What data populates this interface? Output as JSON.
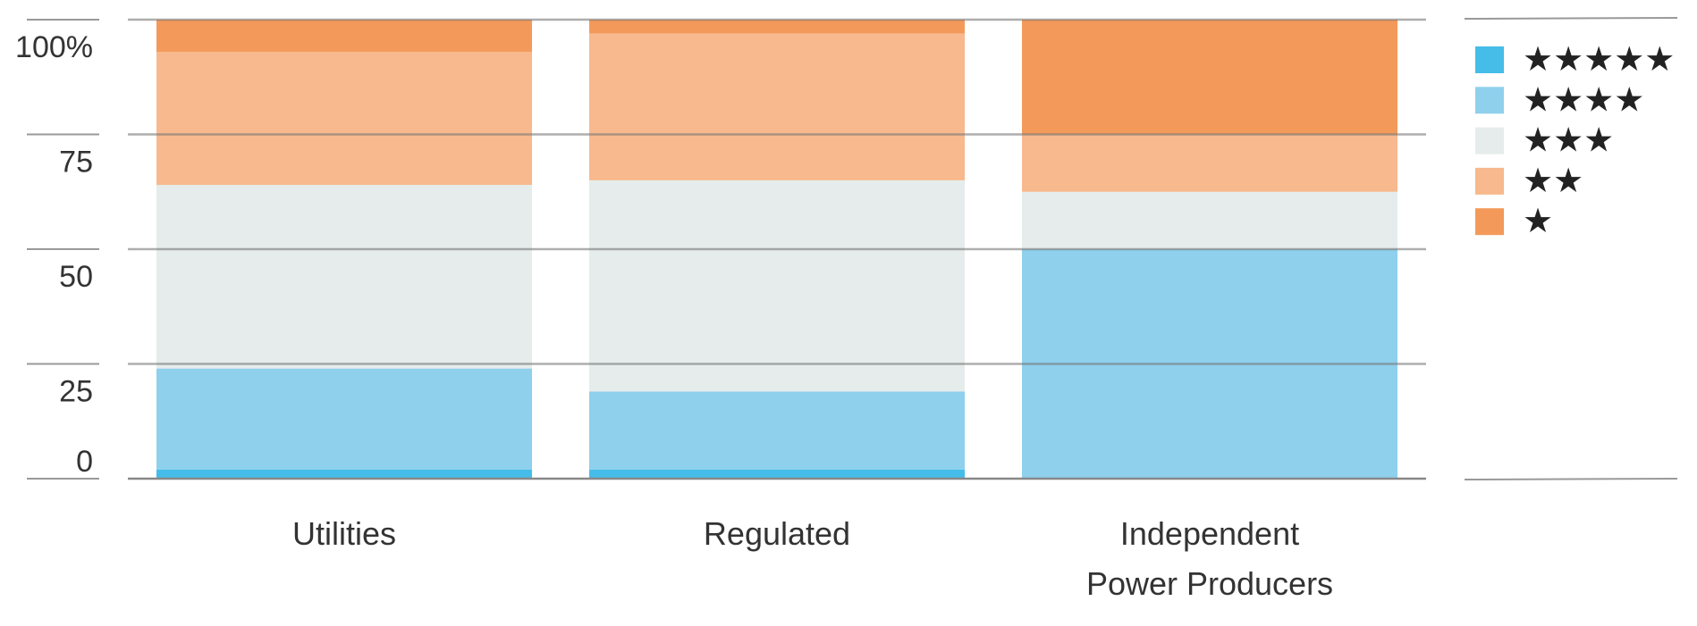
{
  "chart_data": {
    "type": "stacked_bar",
    "categories": [
      "Utilities",
      "Regulated",
      "Independent Power Producers"
    ],
    "series": [
      {
        "name": "★★★★★",
        "color": "#45bde8",
        "values": [
          2,
          2,
          0
        ]
      },
      {
        "name": "★★★★",
        "color": "#8fd0ec",
        "values": [
          22,
          17,
          50
        ]
      },
      {
        "name": "★★★",
        "color": "#e6ecec",
        "values": [
          40,
          46,
          12.5
        ]
      },
      {
        "name": "★★",
        "color": "#f7b98d",
        "values": [
          29,
          32,
          12.5
        ]
      },
      {
        "name": "★",
        "color": "#f39a5a",
        "values": [
          7,
          3,
          25
        ]
      }
    ],
    "ylim": [
      0,
      100
    ],
    "yticks": [
      0,
      25,
      50,
      75,
      {
        "value": 100,
        "label": "100%"
      }
    ],
    "grid": true
  }
}
